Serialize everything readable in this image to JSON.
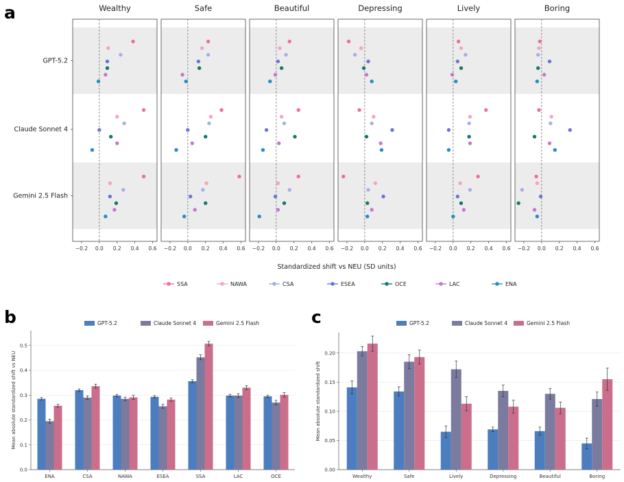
{
  "panel_labels": {
    "a": "a",
    "b": "b",
    "c": "c"
  },
  "colors": {
    "SSA": "#ee6f9b",
    "NAWA": "#f2a6bf",
    "CSA": "#a5aee9",
    "ESEA": "#6b74d6",
    "OCE": "#18786c",
    "LAC": "#c477cf",
    "ENA": "#2a8cc4",
    "GPT-5.2": "#4c7dbf",
    "Claude Sonnet 4": "#7a7b9e",
    "Gemini 2.5 Flash": "#cb6e8b"
  },
  "chart_data": [
    {
      "type": "scatter",
      "panel": "a",
      "facets": [
        "Wealthy",
        "Safe",
        "Beautiful",
        "Depressing",
        "Lively",
        "Boring"
      ],
      "models": [
        "GPT-5.2",
        "Claude Sonnet 4",
        "Gemini 2.5 Flash"
      ],
      "regions": [
        "SSA",
        "NAWA",
        "CSA",
        "ESEA",
        "OCE",
        "LAC",
        "ENA"
      ],
      "xlabel": "Standardized shift vs NEU (SD units)",
      "xlim": [
        -0.3,
        0.65
      ],
      "xticks": [
        "−0.2",
        "0.0",
        "0.2",
        "0.4",
        "0.6"
      ],
      "xtick_values": [
        -0.2,
        0.0,
        0.2,
        0.4,
        0.6
      ],
      "reference_line": 0,
      "legend_position": "bottom",
      "values": {
        "Wealthy": {
          "GPT-5.2": [
            0.38,
            0.1,
            0.24,
            0.09,
            0.09,
            0.07,
            -0.01
          ],
          "Claude Sonnet 4": [
            0.5,
            0.2,
            0.28,
            0.0,
            0.13,
            0.2,
            -0.08
          ],
          "Gemini 2.5 Flash": [
            0.5,
            0.12,
            0.27,
            0.12,
            0.19,
            0.17,
            0.07
          ]
        },
        "Safe": {
          "GPT-5.2": [
            0.23,
            0.16,
            0.23,
            0.12,
            0.13,
            -0.06,
            -0.02
          ],
          "Claude Sonnet 4": [
            0.38,
            0.26,
            0.24,
            0.0,
            0.2,
            0.05,
            -0.13
          ],
          "Gemini 2.5 Flash": [
            0.58,
            0.21,
            0.17,
            0.03,
            0.2,
            0.08,
            -0.04
          ]
        },
        "Beautiful": {
          "GPT-5.2": [
            0.15,
            0.04,
            0.11,
            0.02,
            0.06,
            -0.01,
            -0.07
          ],
          "Claude Sonnet 4": [
            0.25,
            0.06,
            0.09,
            -0.11,
            0.21,
            0.03,
            -0.15
          ],
          "Gemini 2.5 Flash": [
            0.25,
            0.02,
            0.15,
            -0.01,
            0.09,
            0.02,
            -0.19
          ]
        },
        "Depressing": {
          "GPT-5.2": [
            -0.18,
            -0.04,
            -0.11,
            0.04,
            -0.01,
            0.02,
            0.08
          ],
          "Claude Sonnet 4": [
            -0.06,
            0.1,
            0.08,
            0.31,
            0.02,
            0.18,
            0.19
          ],
          "Gemini 2.5 Flash": [
            -0.24,
            0.12,
            0.04,
            0.21,
            0.03,
            0.08,
            0.03
          ]
        },
        "Lively": {
          "GPT-5.2": [
            0.06,
            0.09,
            0.14,
            0.05,
            0.09,
            -0.01,
            0.03
          ],
          "Claude Sonnet 4": [
            0.37,
            0.19,
            0.18,
            -0.05,
            0.18,
            0.19,
            -0.05
          ],
          "Gemini 2.5 Flash": [
            0.28,
            0.08,
            0.19,
            0.05,
            0.09,
            0.12,
            0.0
          ]
        },
        "Boring": {
          "GPT-5.2": [
            -0.02,
            -0.03,
            -0.04,
            0.09,
            -0.04,
            0.03,
            -0.05
          ],
          "Claude Sonnet 4": [
            -0.03,
            0.11,
            0.1,
            0.32,
            -0.08,
            0.09,
            0.15
          ],
          "Gemini 2.5 Flash": [
            -0.06,
            -0.05,
            -0.22,
            -0.01,
            -0.26,
            -0.08,
            -0.05
          ]
        }
      }
    },
    {
      "type": "bar",
      "panel": "b",
      "categories": [
        "ENA",
        "CSA",
        "NAWA",
        "ESEA",
        "SSA",
        "LAC",
        "OCE"
      ],
      "ylabel": "Mean absolute standardized shift vs NEU",
      "ylim": [
        0,
        0.56
      ],
      "yticks": [
        0.0,
        0.1,
        0.2,
        0.3,
        0.4,
        0.5
      ],
      "legend_position": "top",
      "series": [
        {
          "name": "GPT-5.2",
          "values": [
            0.285,
            0.32,
            0.298,
            0.293,
            0.356,
            0.298,
            0.295
          ],
          "errors": [
            0.005,
            0.005,
            0.005,
            0.005,
            0.006,
            0.005,
            0.005
          ]
        },
        {
          "name": "Claude Sonnet 4",
          "values": [
            0.195,
            0.29,
            0.285,
            0.255,
            0.452,
            0.298,
            0.27
          ],
          "errors": [
            0.008,
            0.007,
            0.007,
            0.008,
            0.01,
            0.008,
            0.009
          ]
        },
        {
          "name": "Gemini 2.5 Flash",
          "values": [
            0.257,
            0.336,
            0.291,
            0.282,
            0.507,
            0.33,
            0.301
          ],
          "errors": [
            0.006,
            0.008,
            0.008,
            0.007,
            0.009,
            0.008,
            0.009
          ]
        }
      ]
    },
    {
      "type": "bar",
      "panel": "c",
      "categories": [
        "Wealthy",
        "Safe",
        "Lively",
        "Depressing",
        "Beautiful",
        "Boring"
      ],
      "ylabel": "Mean absolute standardized shift",
      "ylim": [
        0,
        0.235
      ],
      "yticks": [
        0.0,
        0.05,
        0.1,
        0.15,
        0.2
      ],
      "legend_position": "top",
      "series": [
        {
          "name": "GPT-5.2",
          "values": [
            0.141,
            0.134,
            0.065,
            0.069,
            0.066,
            0.045
          ],
          "errors": [
            0.011,
            0.008,
            0.01,
            0.004,
            0.007,
            0.009
          ]
        },
        {
          "name": "Claude Sonnet 4",
          "values": [
            0.203,
            0.185,
            0.172,
            0.135,
            0.13,
            0.121
          ],
          "errors": [
            0.008,
            0.012,
            0.014,
            0.01,
            0.009,
            0.012
          ]
        },
        {
          "name": "Gemini 2.5 Flash",
          "values": [
            0.216,
            0.193,
            0.113,
            0.108,
            0.106,
            0.155
          ],
          "errors": [
            0.013,
            0.012,
            0.012,
            0.011,
            0.01,
            0.019
          ]
        }
      ]
    }
  ]
}
